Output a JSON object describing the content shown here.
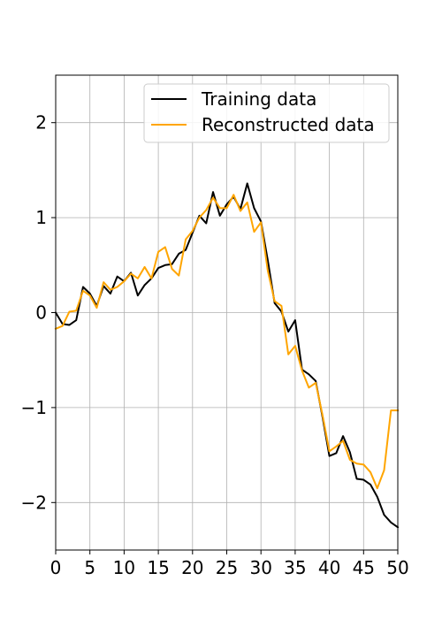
{
  "chart_data": {
    "type": "line",
    "title": "",
    "xlabel": "",
    "ylabel": "",
    "xlim": [
      0,
      50
    ],
    "ylim": [
      -2.5,
      2.5
    ],
    "grid": true,
    "legend_position": "upper-right",
    "x_ticks": [
      0,
      5,
      10,
      15,
      20,
      25,
      30,
      35,
      40,
      45,
      50
    ],
    "x_tick_labels": [
      "0",
      "5",
      "10",
      "15",
      "20",
      "25",
      "30",
      "35",
      "40",
      "45",
      "50"
    ],
    "y_ticks": [
      -2,
      -1,
      0,
      1,
      2
    ],
    "y_tick_labels": [
      "−2",
      "−1",
      "0",
      "1",
      "2"
    ],
    "series": [
      {
        "name": "Training data",
        "color": "#000000",
        "x": [
          0,
          1,
          2,
          3,
          4,
          5,
          6,
          7,
          8,
          9,
          10,
          11,
          12,
          13,
          14,
          15,
          16,
          17,
          18,
          19,
          20,
          21,
          22,
          23,
          24,
          25,
          26,
          27,
          28,
          29,
          30,
          31,
          32,
          33,
          34,
          35,
          36,
          37,
          38,
          39,
          40,
          41,
          42,
          43,
          44,
          45,
          46,
          47,
          48,
          49,
          50
        ],
        "y": [
          0.0,
          -0.12,
          -0.13,
          -0.08,
          0.27,
          0.2,
          0.07,
          0.28,
          0.2,
          0.38,
          0.33,
          0.42,
          0.18,
          0.29,
          0.36,
          0.47,
          0.5,
          0.51,
          0.62,
          0.66,
          0.84,
          1.02,
          0.94,
          1.27,
          1.02,
          1.14,
          1.22,
          1.09,
          1.36,
          1.1,
          0.96,
          0.55,
          0.1,
          0.01,
          -0.2,
          -0.08,
          -0.6,
          -0.65,
          -0.72,
          -1.1,
          -1.51,
          -1.48,
          -1.3,
          -1.47,
          -1.75,
          -1.76,
          -1.81,
          -1.94,
          -2.13,
          -2.21,
          -2.26
        ]
      },
      {
        "name": "Reconstructed data",
        "color": "#FFA500",
        "x": [
          0,
          1,
          2,
          3,
          4,
          5,
          6,
          7,
          8,
          9,
          10,
          11,
          12,
          13,
          14,
          15,
          16,
          17,
          18,
          19,
          20,
          21,
          22,
          23,
          24,
          25,
          26,
          27,
          28,
          29,
          30,
          31,
          32,
          33,
          34,
          35,
          36,
          37,
          38,
          39,
          40,
          41,
          42,
          43,
          44,
          45,
          46,
          47,
          48,
          49,
          50
        ],
        "y": [
          -0.17,
          -0.14,
          0.01,
          0.02,
          0.23,
          0.18,
          0.05,
          0.32,
          0.24,
          0.27,
          0.33,
          0.41,
          0.36,
          0.48,
          0.36,
          0.64,
          0.69,
          0.46,
          0.39,
          0.77,
          0.86,
          1.0,
          1.08,
          1.21,
          1.1,
          1.1,
          1.24,
          1.07,
          1.16,
          0.85,
          0.95,
          0.44,
          0.12,
          0.07,
          -0.44,
          -0.35,
          -0.61,
          -0.79,
          -0.74,
          -1.08,
          -1.46,
          -1.41,
          -1.35,
          -1.55,
          -1.59,
          -1.6,
          -1.68,
          -1.85,
          -1.66,
          -1.03,
          -1.03
        ]
      }
    ]
  }
}
